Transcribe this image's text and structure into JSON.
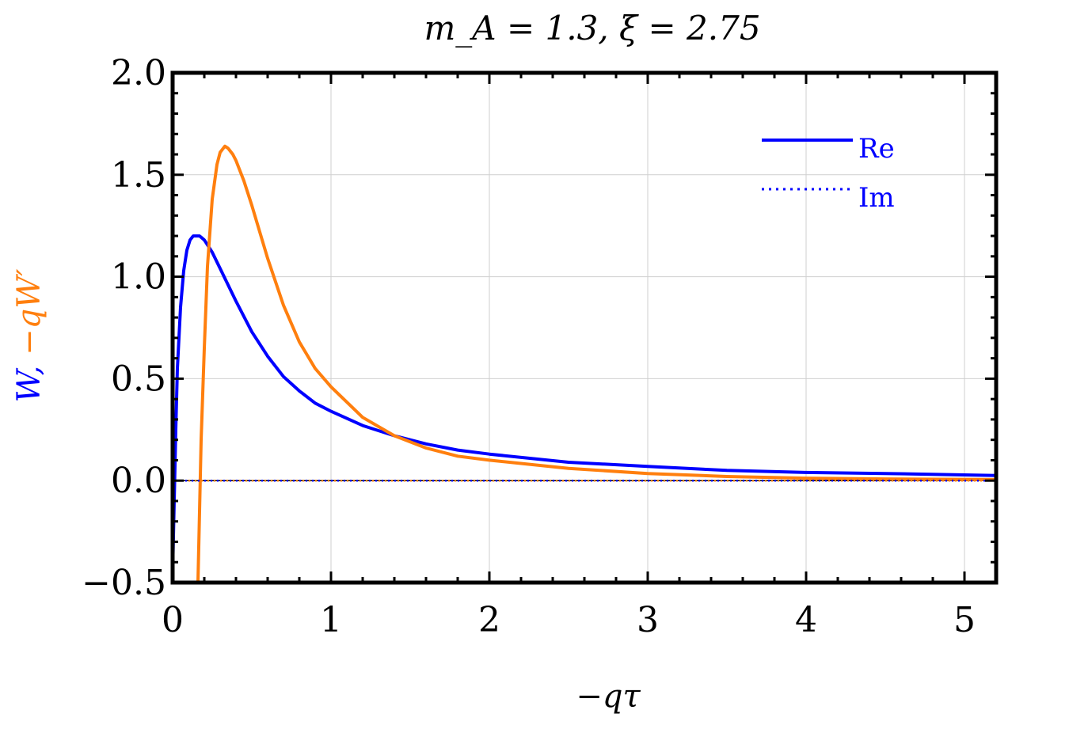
{
  "chart_data": {
    "type": "line",
    "title": "m_A = 1.3, ξ = 2.75",
    "xlabel": "−qτ",
    "ylabel_parts": [
      {
        "text": "W",
        "color": "#0000ff"
      },
      {
        "text": ", ",
        "color": "#0000ff"
      },
      {
        "text": "−qW′",
        "color": "#ff7f0e"
      }
    ],
    "xlim": [
      0,
      5.2
    ],
    "ylim": [
      -0.5,
      2.0
    ],
    "xticks": [
      0,
      1,
      2,
      3,
      4,
      5
    ],
    "xtick_labels": [
      "0",
      "1",
      "2",
      "3",
      "4",
      "5"
    ],
    "yticks": [
      -0.5,
      0.0,
      0.5,
      1.0,
      1.5,
      2.0
    ],
    "ytick_labels": [
      "−0.5",
      "0.0",
      "0.5",
      "1.0",
      "1.5",
      "2.0"
    ],
    "grid": true,
    "legend": {
      "position": "top-right",
      "entries": [
        {
          "label": "Re",
          "style": "solid",
          "color": "#0000ff"
        },
        {
          "label": "Im",
          "style": "dotted",
          "color": "#0000ff"
        }
      ]
    },
    "series": [
      {
        "color": "#0000ff",
        "style": "solid",
        "x": [
          0.0,
          0.01,
          0.02,
          0.03,
          0.05,
          0.07,
          0.09,
          0.11,
          0.13,
          0.15,
          0.17,
          0.2,
          0.25,
          0.3,
          0.35,
          0.4,
          0.5,
          0.6,
          0.7,
          0.8,
          0.9,
          1.0,
          1.2,
          1.4,
          1.6,
          1.8,
          2.0,
          2.5,
          3.0,
          3.5,
          4.0,
          4.5,
          5.2
        ],
        "y": [
          -0.45,
          -0.1,
          0.25,
          0.55,
          0.85,
          1.03,
          1.13,
          1.18,
          1.2,
          1.2,
          1.2,
          1.18,
          1.12,
          1.04,
          0.96,
          0.88,
          0.73,
          0.61,
          0.51,
          0.44,
          0.38,
          0.34,
          0.27,
          0.22,
          0.18,
          0.15,
          0.13,
          0.09,
          0.07,
          0.05,
          0.04,
          0.035,
          0.025
        ]
      },
      {
        "color": "#ff7f0e",
        "style": "solid",
        "x": [
          0.16,
          0.18,
          0.2,
          0.22,
          0.25,
          0.28,
          0.3,
          0.33,
          0.35,
          0.38,
          0.4,
          0.45,
          0.5,
          0.55,
          0.6,
          0.7,
          0.8,
          0.9,
          1.0,
          1.2,
          1.4,
          1.6,
          1.8,
          2.0,
          2.5,
          3.0,
          3.5,
          4.0,
          4.5,
          5.2
        ],
        "y": [
          -0.5,
          0.2,
          0.65,
          1.05,
          1.38,
          1.55,
          1.61,
          1.64,
          1.63,
          1.6,
          1.57,
          1.47,
          1.35,
          1.22,
          1.09,
          0.86,
          0.68,
          0.55,
          0.46,
          0.31,
          0.22,
          0.16,
          0.12,
          0.1,
          0.06,
          0.035,
          0.02,
          0.012,
          0.008,
          0.005
        ]
      },
      {
        "color": "#0000ff",
        "style": "dotted",
        "x": [
          0.0,
          5.2
        ],
        "y": [
          0.0,
          0.0
        ]
      },
      {
        "color": "#ff7f0e",
        "style": "dotted",
        "x": [
          0.0,
          5.2
        ],
        "y": [
          0.0,
          0.0
        ]
      }
    ]
  }
}
